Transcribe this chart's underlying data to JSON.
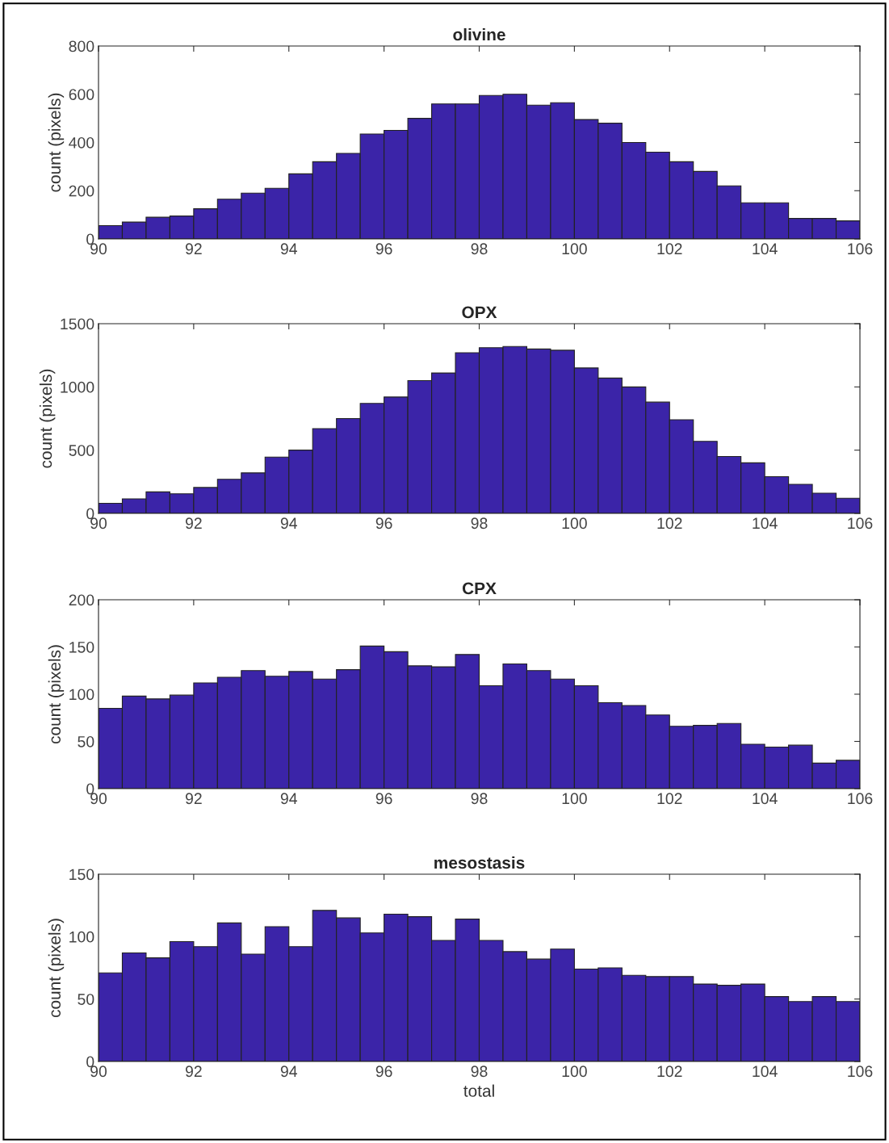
{
  "chart_data": [
    {
      "type": "histogram",
      "title": "olivine",
      "ylabel": "count (pixels)",
      "bins": [
        90,
        90.5,
        91,
        91.5,
        92,
        92.5,
        93,
        93.5,
        94,
        94.5,
        95,
        95.5,
        96,
        96.5,
        97,
        97.5,
        98,
        98.5,
        99,
        99.5,
        100,
        100.5,
        101,
        101.5,
        102,
        102.5,
        103,
        103.5,
        104,
        104.5,
        105,
        105.5,
        106
      ],
      "values": [
        55,
        70,
        90,
        95,
        125,
        165,
        190,
        210,
        270,
        320,
        355,
        435,
        450,
        500,
        560,
        560,
        595,
        600,
        555,
        565,
        495,
        480,
        400,
        360,
        320,
        280,
        220,
        150,
        150,
        85,
        85,
        75
      ],
      "color": "#3b24a8",
      "xlim": [
        90,
        106
      ],
      "xticks": [
        90,
        92,
        94,
        96,
        98,
        100,
        102,
        104,
        106
      ],
      "ylim": [
        0,
        800
      ],
      "yticks": [
        0,
        200,
        400,
        600,
        800
      ],
      "grid": false
    },
    {
      "type": "histogram",
      "title": "OPX",
      "ylabel": "count (pixels)",
      "bins": [
        90,
        90.5,
        91,
        91.5,
        92,
        92.5,
        93,
        93.5,
        94,
        94.5,
        95,
        95.5,
        96,
        96.5,
        97,
        97.5,
        98,
        98.5,
        99,
        99.5,
        100,
        100.5,
        101,
        101.5,
        102,
        102.5,
        103,
        103.5,
        104,
        104.5,
        105,
        105.5,
        106
      ],
      "values": [
        80,
        115,
        170,
        155,
        205,
        270,
        320,
        445,
        500,
        670,
        750,
        870,
        920,
        1050,
        1110,
        1270,
        1310,
        1320,
        1300,
        1290,
        1150,
        1070,
        1000,
        880,
        740,
        570,
        450,
        400,
        290,
        230,
        160,
        120
      ],
      "color": "#3b24a8",
      "xlim": [
        90,
        106
      ],
      "xticks": [
        90,
        92,
        94,
        96,
        98,
        100,
        102,
        104,
        106
      ],
      "ylim": [
        0,
        1500
      ],
      "yticks": [
        0,
        500,
        1000,
        1500
      ],
      "grid": false
    },
    {
      "type": "histogram",
      "title": "CPX",
      "ylabel": "count (pixels)",
      "bins": [
        90,
        90.5,
        91,
        91.5,
        92,
        92.5,
        93,
        93.5,
        94,
        94.5,
        95,
        95.5,
        96,
        96.5,
        97,
        97.5,
        98,
        98.5,
        99,
        99.5,
        100,
        100.5,
        101,
        101.5,
        102,
        102.5,
        103,
        103.5,
        104,
        104.5,
        105,
        105.5,
        106
      ],
      "values": [
        85,
        98,
        95,
        99,
        112,
        118,
        125,
        119,
        124,
        116,
        126,
        151,
        145,
        130,
        129,
        142,
        109,
        132,
        125,
        116,
        109,
        91,
        88,
        78,
        66,
        67,
        69,
        47,
        44,
        46,
        27,
        30
      ],
      "color": "#3b24a8",
      "xlim": [
        90,
        106
      ],
      "xticks": [
        90,
        92,
        94,
        96,
        98,
        100,
        102,
        104,
        106
      ],
      "ylim": [
        0,
        200
      ],
      "yticks": [
        0,
        50,
        100,
        150,
        200
      ],
      "grid": false
    },
    {
      "type": "histogram",
      "title": "mesostasis",
      "ylabel": "count (pixels)",
      "xlabel": "total",
      "bins": [
        90,
        90.5,
        91,
        91.5,
        92,
        92.5,
        93,
        93.5,
        94,
        94.5,
        95,
        95.5,
        96,
        96.5,
        97,
        97.5,
        98,
        98.5,
        99,
        99.5,
        100,
        100.5,
        101,
        101.5,
        102,
        102.5,
        103,
        103.5,
        104,
        104.5,
        105,
        105.5,
        106
      ],
      "values": [
        71,
        87,
        83,
        96,
        92,
        111,
        86,
        108,
        92,
        121,
        115,
        103,
        118,
        116,
        97,
        114,
        97,
        88,
        82,
        90,
        74,
        75,
        69,
        68,
        68,
        62,
        61,
        62,
        52,
        48,
        52,
        48
      ],
      "color": "#3b24a8",
      "xlim": [
        90,
        106
      ],
      "xticks": [
        90,
        92,
        94,
        96,
        98,
        100,
        102,
        104,
        106
      ],
      "ylim": [
        0,
        150
      ],
      "yticks": [
        0,
        50,
        100,
        150
      ],
      "grid": false
    }
  ]
}
